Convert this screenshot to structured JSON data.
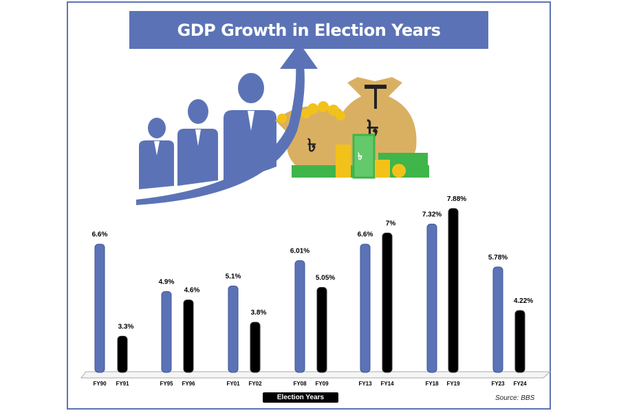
{
  "chart_data": {
    "type": "bar",
    "title": "GDP Growth in Election Years",
    "xlabel": "Election Years",
    "ylabel": "",
    "ylim": [
      2,
      8
    ],
    "grid": false,
    "source": "Source: BBS",
    "categories": [
      "FY90",
      "FY91",
      "FY95",
      "FY96",
      "FY01",
      "FY02",
      "FY08",
      "FY09",
      "FY13",
      "FY14",
      "FY18",
      "FY19",
      "FY23",
      "FY24"
    ],
    "values": [
      6.6,
      3.3,
      4.9,
      4.6,
      5.1,
      3.8,
      6.01,
      5.05,
      6.6,
      7.0,
      7.32,
      7.88,
      5.78,
      4.22
    ],
    "data_labels": [
      "6.6%",
      "3.3%",
      "4.9%",
      "4.6%",
      "5.1%",
      "3.8%",
      "6.01%",
      "5.05%",
      "6.6%",
      "7%",
      "7.32%",
      "7.88%",
      "5.78%",
      "4.22%"
    ],
    "bar_colors": [
      "#5b73b6",
      "#000000",
      "#5b73b6",
      "#000000",
      "#5b73b6",
      "#000000",
      "#5b73b6",
      "#000000",
      "#5b73b6",
      "#000000",
      "#5b73b6",
      "#000000",
      "#5b73b6",
      "#000000"
    ]
  },
  "colors": {
    "accent": "#5b73b6",
    "dark": "#000000",
    "gold": "#d9b062",
    "green": "#3fb54a"
  }
}
